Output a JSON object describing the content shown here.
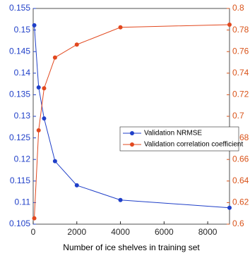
{
  "chart_data": {
    "type": "line",
    "x_label": "Number of ice shelves in training set",
    "x": [
      50,
      250,
      500,
      1000,
      2000,
      4000,
      9000
    ],
    "xlim": [
      0,
      9000
    ],
    "xticks": [
      0,
      2000,
      4000,
      6000,
      8000
    ],
    "ylim": [
      0.105,
      0.155
    ],
    "yticks": [
      0.105,
      0.11,
      0.115,
      0.12,
      0.125,
      0.13,
      0.135,
      0.14,
      0.145,
      0.15,
      0.155
    ],
    "y2lim": [
      0.6,
      0.8
    ],
    "y2ticks": [
      0.6,
      0.62,
      0.64,
      0.66,
      0.68,
      0.7,
      0.72,
      0.74,
      0.76,
      0.78,
      0.8
    ],
    "y_color": "#1f3fc8",
    "y2_color": "#d95319",
    "legend": "center-right",
    "series": [
      {
        "name": "Validation NRMSE",
        "color": "#1f3fc8",
        "values": [
          0.1511,
          0.1367,
          0.1295,
          0.1196,
          0.114,
          0.1106,
          0.1088
        ]
      },
      {
        "name": "Validation correlation coefficient",
        "color": "#e2481e",
        "axis": "y2",
        "values": [
          0.6055,
          0.687,
          0.726,
          0.7545,
          0.7665,
          0.7825,
          0.785
        ]
      }
    ]
  }
}
